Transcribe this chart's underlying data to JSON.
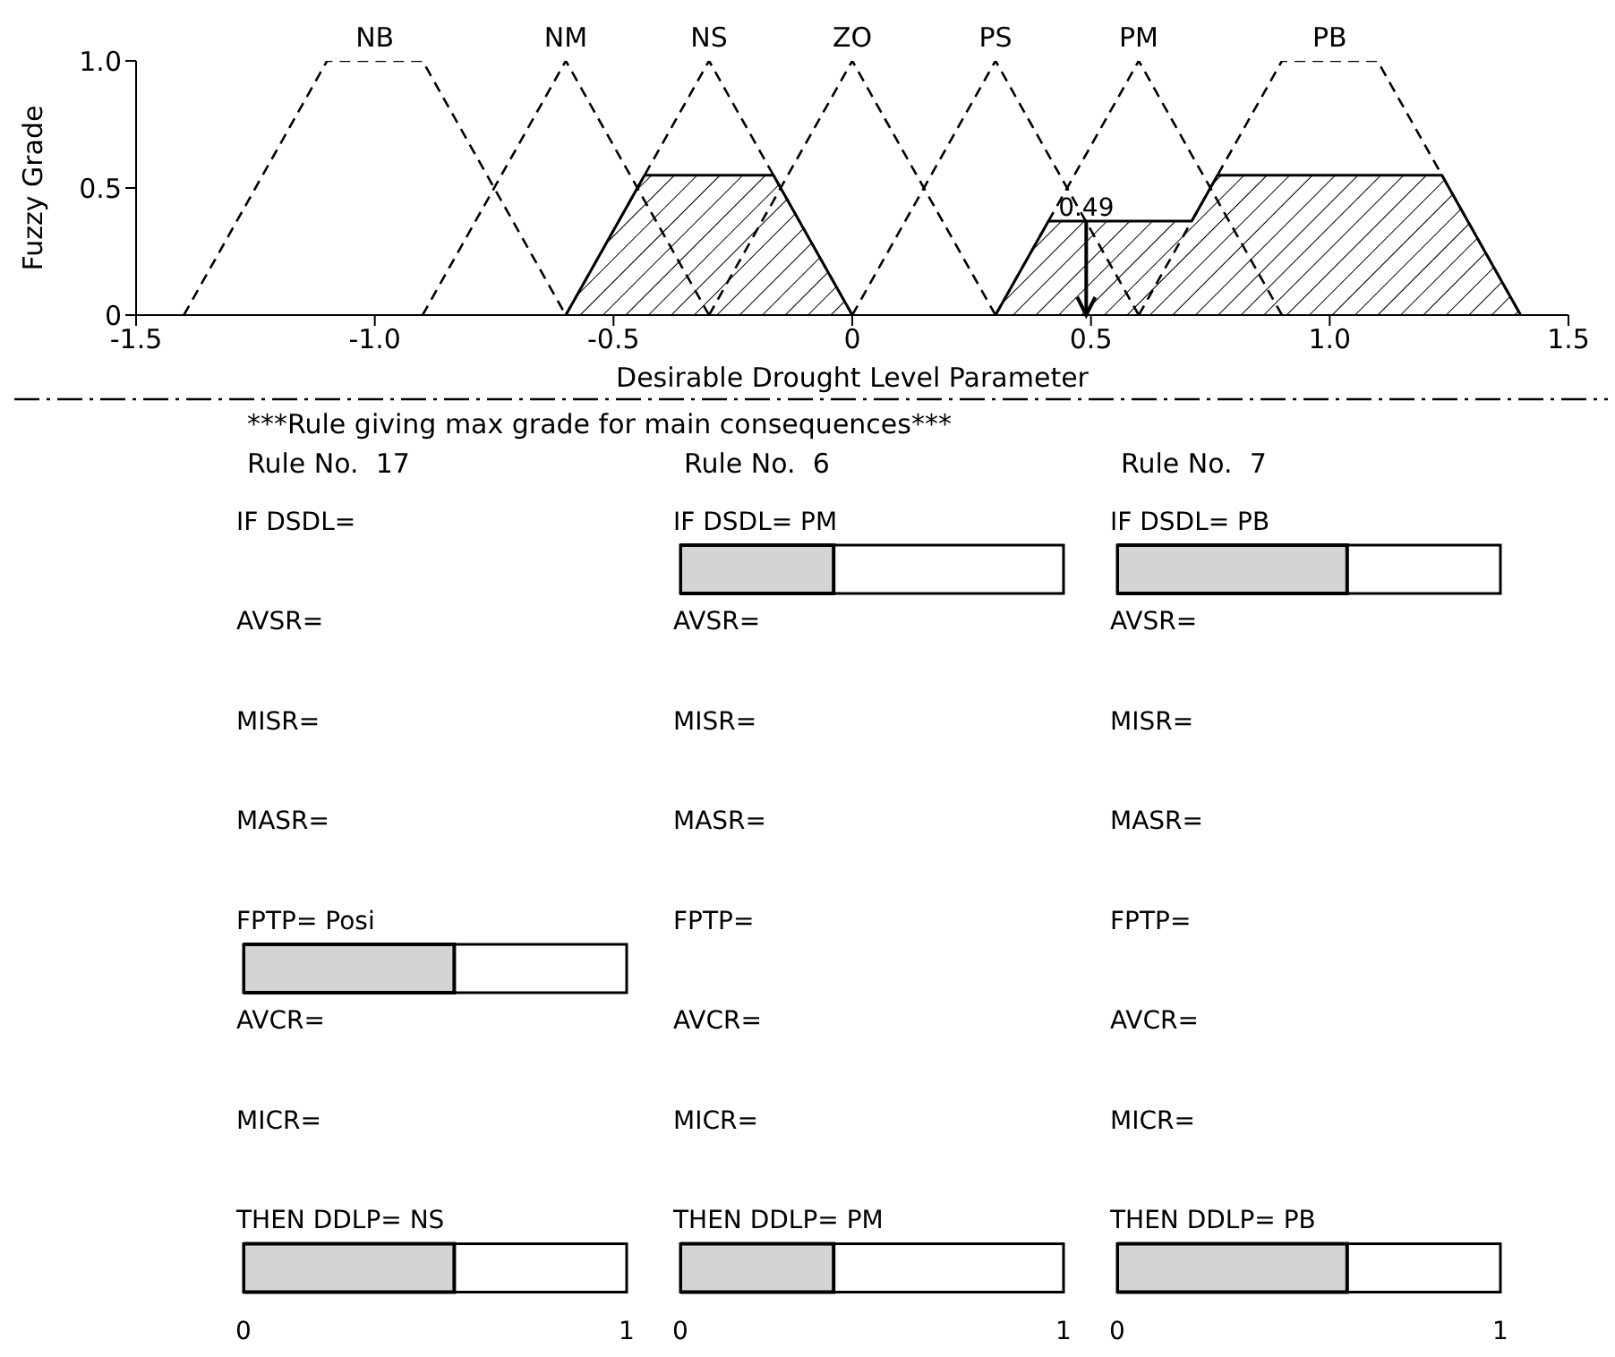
{
  "chart_data": [
    {
      "type": "line",
      "xlabel": "Desirable Drought Level Parameter",
      "ylabel": "Fuzzy Grade",
      "xlim": [
        -1.5,
        1.5
      ],
      "ylim": [
        0,
        1
      ],
      "xticks": [
        {
          "value": -1.5,
          "label": "-1.5"
        },
        {
          "value": -1,
          "label": "-1.0"
        },
        {
          "value": -0.5,
          "label": "-0.5"
        },
        0,
        0.5,
        {
          "value": 1,
          "label": "1.0"
        },
        1.5
      ],
      "yticks": [
        0,
        0.5,
        {
          "value": 1,
          "label": "1.0"
        }
      ],
      "grid": false,
      "legend": false,
      "series": [
        {
          "name": "NB",
          "type": "line",
          "color": "#000000",
          "line_style": "dashed",
          "x": [
            -1.4,
            -1.1,
            -0.9,
            -0.6
          ],
          "values": [
            0,
            1,
            1,
            0
          ]
        },
        {
          "name": "NM",
          "type": "line",
          "color": "#000000",
          "line_style": "dashed",
          "x": [
            -0.9,
            -0.6,
            -0.3
          ],
          "values": [
            0,
            1,
            0
          ]
        },
        {
          "name": "NS",
          "type": "line",
          "color": "#000000",
          "line_style": "dashed",
          "x": [
            -0.6,
            -0.3,
            0
          ],
          "values": [
            0,
            1,
            0
          ]
        },
        {
          "name": "ZO",
          "type": "line",
          "color": "#000000",
          "line_style": "dashed",
          "x": [
            -0.3,
            0,
            0.3
          ],
          "values": [
            0,
            1,
            0
          ]
        },
        {
          "name": "PS",
          "type": "line",
          "color": "#000000",
          "line_style": "dashed",
          "x": [
            0,
            0.3,
            0.6
          ],
          "values": [
            0,
            1,
            0
          ]
        },
        {
          "name": "PM",
          "type": "line",
          "color": "#000000",
          "line_style": "dashed",
          "x": [
            0.3,
            0.6,
            0.9
          ],
          "values": [
            0,
            1,
            0
          ]
        },
        {
          "name": "PB",
          "type": "line",
          "color": "#000000",
          "line_style": "dashed",
          "x": [
            0.6,
            0.9,
            1.1,
            1.4
          ],
          "values": [
            0,
            1,
            1,
            0
          ]
        },
        {
          "type": "area",
          "color": "#000000",
          "x": [
            -0.6,
            -0.435,
            -0.165,
            0
          ],
          "values": [
            0,
            0.55,
            0.55,
            0
          ]
        },
        {
          "type": "area",
          "color": "#000000",
          "x": [
            0.3,
            0.411,
            0.711,
            0.765,
            1.235,
            1.4
          ],
          "values": [
            0,
            0.37,
            0.37,
            0.55,
            0.55,
            0
          ]
        }
      ],
      "annotations": [
        {
          "text": "0.49",
          "x": 0.49,
          "y": 0.37
        }
      ]
    },
    {
      "type": "bar",
      "orientation": "horizontal",
      "title": "***Rule giving max grade for main consequences***",
      "subtitle": "Rule No.  17",
      "categories": [
        "IF DSDL=",
        "AVSR=",
        "MISR=",
        "MASR=",
        "FPTP= Posi",
        "AVCR=",
        "MICR=",
        "THEN DDLP= NS"
      ],
      "values": [
        0,
        0,
        0,
        0,
        0.55,
        0,
        0,
        0.55
      ],
      "color": "#d4d4d4",
      "xlim": [
        0,
        1
      ],
      "xticks": [
        0,
        1
      ]
    },
    {
      "type": "bar",
      "orientation": "horizontal",
      "subtitle": "Rule No.  6",
      "categories": [
        "IF DSDL= PM",
        "AVSR=",
        "MISR=",
        "MASR=",
        "FPTP=",
        "AVCR=",
        "MICR=",
        "THEN DDLP= PM"
      ],
      "values": [
        0.4,
        0,
        0,
        0,
        0,
        0,
        0,
        0.4
      ],
      "color": "#d4d4d4",
      "xlim": [
        0,
        1
      ],
      "xticks": [
        0,
        1
      ]
    },
    {
      "type": "bar",
      "orientation": "horizontal",
      "subtitle": "Rule No.  7",
      "categories": [
        "IF DSDL= PB",
        "AVSR=",
        "MISR=",
        "MASR=",
        "FPTP=",
        "AVCR=",
        "MICR=",
        "THEN DDLP= PB"
      ],
      "values": [
        0.6,
        0,
        0,
        0,
        0,
        0,
        0,
        0.6
      ],
      "color": "#d4d4d4",
      "xlim": [
        0,
        1
      ],
      "xticks": [
        0,
        1
      ]
    }
  ]
}
